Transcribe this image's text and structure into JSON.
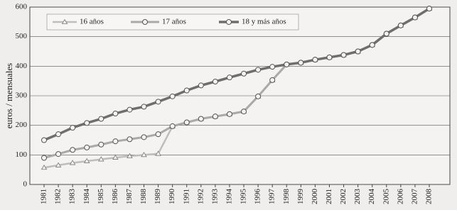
{
  "chart_data": {
    "type": "line",
    "y_label": "euros / mensuales",
    "categories": [
      "1981",
      "1982",
      "1983",
      "1984",
      "1985",
      "1986",
      "1987",
      "1988",
      "1989",
      "1990",
      "1991",
      "1992",
      "1993",
      "1994",
      "1995",
      "1996",
      "1997",
      "1998",
      "1999",
      "2000",
      "2001",
      "2002",
      "2003",
      "2004",
      "2005",
      "2006",
      "2007",
      "2008"
    ],
    "series": [
      {
        "name": "16 años",
        "color": "#bdbdbd",
        "marker": "triangle",
        "width": 2.5,
        "values": [
          57,
          65,
          73,
          79,
          85,
          91,
          96,
          100,
          104,
          197,
          210,
          222,
          230,
          238,
          247,
          298,
          353,
          406,
          412,
          422,
          430,
          438,
          450,
          472,
          510,
          538,
          565,
          595
        ]
      },
      {
        "name": "17 años",
        "color": "#a9a9a9",
        "marker": "circle",
        "width": 3,
        "values": [
          90,
          103,
          117,
          125,
          135,
          146,
          153,
          160,
          170,
          197,
          210,
          222,
          230,
          238,
          247,
          298,
          353,
          406,
          412,
          422,
          430,
          438,
          450,
          472,
          510,
          538,
          565,
          595
        ]
      },
      {
        "name": "18 y más años",
        "color": "#6e6e6e",
        "marker": "circle",
        "width": 3.5,
        "values": [
          150,
          170,
          192,
          208,
          222,
          240,
          253,
          263,
          280,
          298,
          318,
          335,
          348,
          362,
          375,
          388,
          398,
          406,
          412,
          422,
          430,
          438,
          450,
          472,
          510,
          538,
          565,
          595
        ]
      }
    ],
    "ylim": [
      0,
      600
    ],
    "yticks": [
      0,
      100,
      200,
      300,
      400,
      500,
      600
    ],
    "grid": true
  }
}
